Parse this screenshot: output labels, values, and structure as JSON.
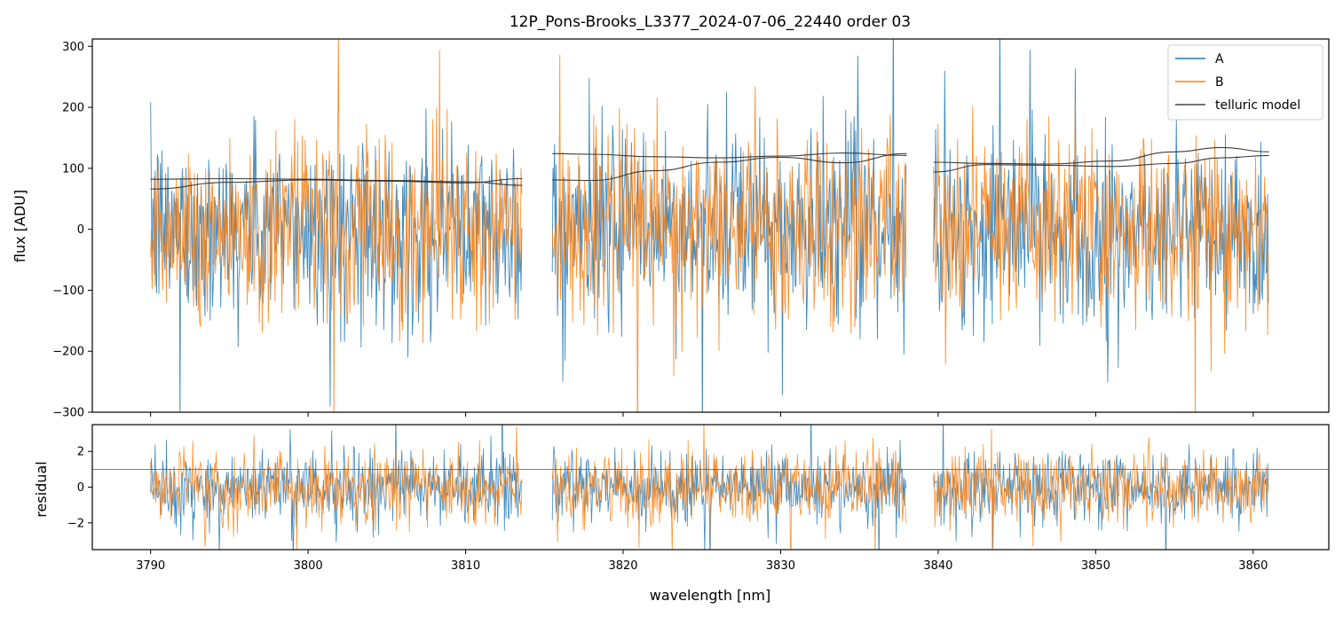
{
  "chart_data": [
    {
      "type": "line",
      "title": "12P_Pons-Brooks_L3377_2024-07-06_22440  order 03",
      "xlabel": "",
      "ylabel": "flux [ADU]",
      "xlim": [
        3786.3,
        3864.8
      ],
      "ylim": [
        -300,
        312
      ],
      "yticks": [
        -300,
        -200,
        -100,
        0,
        100,
        200,
        300
      ],
      "ytick_labels": [
        "−300",
        "−200",
        "−100",
        "0",
        "100",
        "200",
        "300"
      ],
      "segments": [
        [
          3790.0,
          3813.6
        ],
        [
          3815.5,
          3838.0
        ],
        [
          3839.7,
          3861.0
        ]
      ],
      "legend": {
        "placement": "top-right",
        "entries": [
          "A",
          "B",
          "telluric model"
        ]
      },
      "series": [
        {
          "name": "A",
          "color": "#1f77b4",
          "noise_model": {
            "center": 0,
            "sigma": 75
          }
        },
        {
          "name": "B",
          "color": "#ff7f0e",
          "noise_model": {
            "center": 0,
            "sigma": 75
          }
        },
        {
          "name": "telluric model",
          "color": "#333333",
          "curves": [
            {
              "x": [
                3790.0,
                3795.0,
                3800.0,
                3805.0,
                3810.0,
                3813.6
              ],
              "y": [
                82,
                83,
                82,
                80,
                78,
                72
              ]
            },
            {
              "x": [
                3790.0,
                3795.0,
                3800.0,
                3805.0,
                3810.0,
                3813.6
              ],
              "y": [
                66,
                77,
                81,
                79,
                76,
                83
              ]
            },
            {
              "x": [
                3815.5,
                3818.0,
                3822.0,
                3826.0,
                3830.0,
                3834.0,
                3838.0
              ],
              "y": [
                124,
                123,
                119,
                117,
                120,
                125,
                121
              ]
            },
            {
              "x": [
                3815.5,
                3818.0,
                3822.0,
                3826.0,
                3830.0,
                3834.0,
                3838.0
              ],
              "y": [
                81,
                80,
                96,
                110,
                118,
                109,
                124
              ]
            },
            {
              "x": [
                3839.7,
                3843.0,
                3847.0,
                3851.0,
                3855.0,
                3858.0,
                3861.0
              ],
              "y": [
                110,
                108,
                107,
                112,
                127,
                134,
                127
              ]
            },
            {
              "x": [
                3839.7,
                3843.0,
                3847.0,
                3851.0,
                3855.0,
                3858.0,
                3861.0
              ],
              "y": [
                94,
                106,
                105,
                103,
                108,
                117,
                121
              ]
            }
          ]
        }
      ]
    },
    {
      "type": "line",
      "title": "",
      "xlabel": "wavelength [nm]",
      "ylabel": "residual",
      "xlim": [
        3786.3,
        3864.8
      ],
      "ylim": [
        -3.5,
        3.5
      ],
      "xticks": [
        3790,
        3800,
        3810,
        3820,
        3830,
        3840,
        3850,
        3860
      ],
      "xtick_labels": [
        "3790",
        "3800",
        "3810",
        "3820",
        "3830",
        "3840",
        "3850",
        "3860"
      ],
      "yticks": [
        -2,
        0,
        2
      ],
      "ytick_labels": [
        "−2",
        "0",
        "2"
      ],
      "reference_line": {
        "y": 1.0,
        "color": "#555555"
      },
      "segments": [
        [
          3790.0,
          3813.6
        ],
        [
          3815.5,
          3838.0
        ],
        [
          3839.7,
          3861.0
        ]
      ],
      "series": [
        {
          "name": "A",
          "color": "#1f77b4",
          "noise_model": {
            "center": 0,
            "sigma": 1.0
          }
        },
        {
          "name": "B",
          "color": "#ff7f0e",
          "noise_model": {
            "center": 0,
            "sigma": 1.0
          }
        }
      ]
    }
  ]
}
